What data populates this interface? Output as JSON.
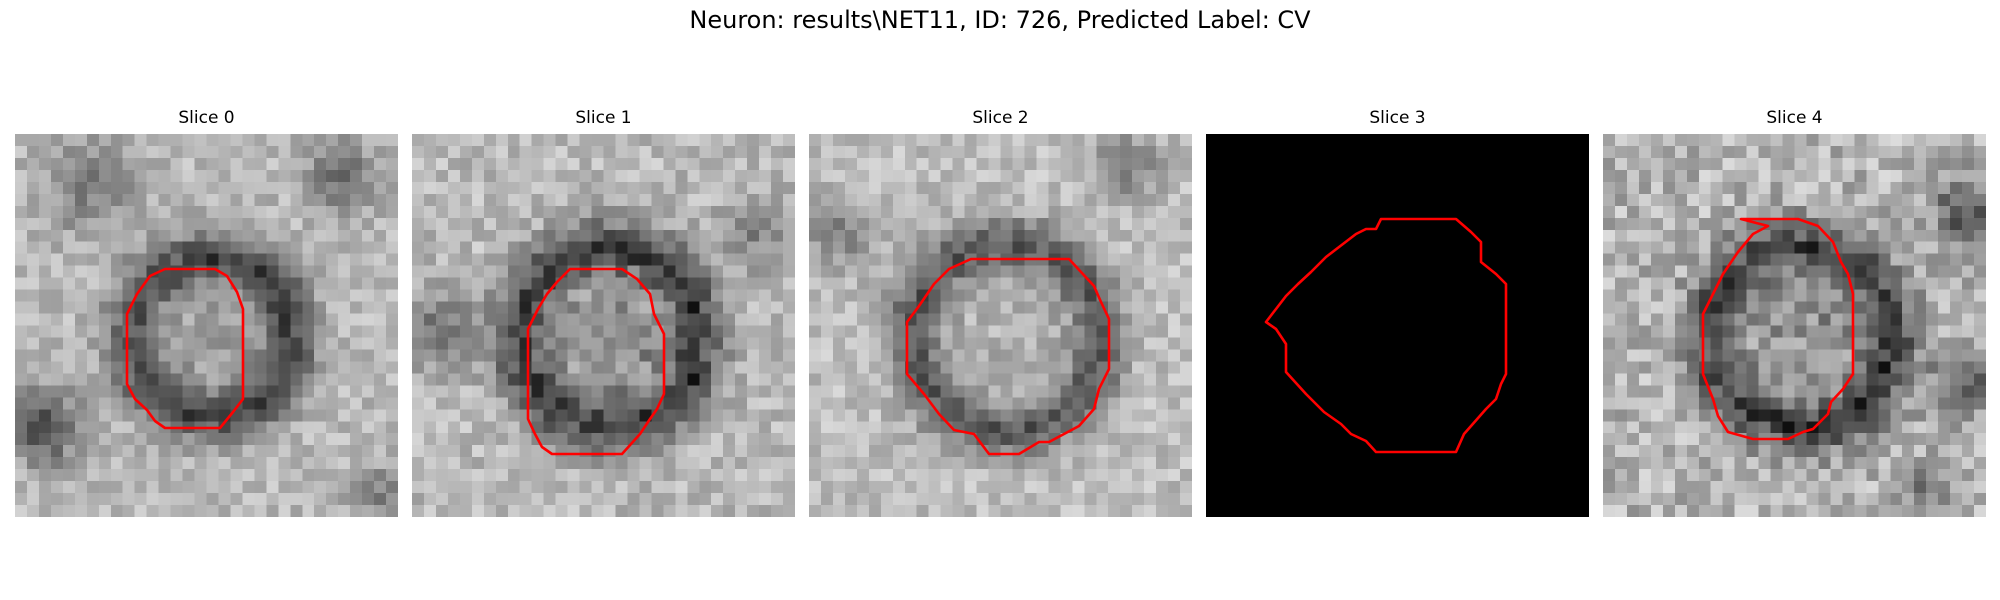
{
  "figure": {
    "title": "Neuron: results\\NET11, ID: 726, Predicted Label: CV"
  },
  "panels": [
    {
      "title": "Slice 0",
      "image": "grayscale-patch"
    },
    {
      "title": "Slice 1",
      "image": "grayscale-patch"
    },
    {
      "title": "Slice 2",
      "image": "grayscale-patch"
    },
    {
      "title": "Slice 3",
      "image": "black-patch"
    },
    {
      "title": "Slice 4",
      "image": "grayscale-patch"
    }
  ],
  "colors": {
    "contour": "#ff0000",
    "background": "#ffffff"
  }
}
